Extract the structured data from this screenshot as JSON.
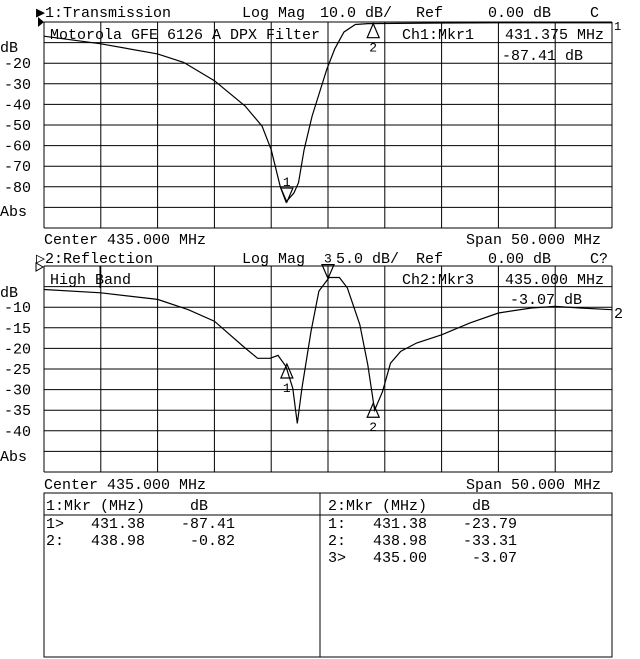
{
  "ch1": {
    "header": {
      "channel": "▶1:Transmission",
      "format": "Log Mag",
      "scale": "10.0 dB/",
      "ref_label": "Ref",
      "ref": "0.00 dB",
      "flag": "C"
    },
    "title": "Motorola GFE 6126 A DPX Filter",
    "marker_label": "Ch1:Mkr1",
    "marker_freq": "431.375 MHz",
    "marker_value": "-87.41 dB",
    "yunit": "dB",
    "ytick_labels": [
      "-20",
      "-30",
      "-40",
      "-50",
      "-60",
      "-70",
      "-80"
    ],
    "yfoot": "Abs",
    "center": "Center 435.000 MHz",
    "span": "Span 50.000 MHz",
    "trace_end_label": "1"
  },
  "ch2": {
    "header": {
      "channel": "▷2:Reflection",
      "format": "Log Mag",
      "scale": "5.0 dB/",
      "ref_label": "Ref",
      "ref": "0.00 dB",
      "flag": "C?"
    },
    "title": "High Band",
    "marker_label": "Ch2:Mkr3",
    "marker_freq": "435.000 MHz",
    "marker_value": "-3.07 dB",
    "yunit": "dB",
    "ytick_labels": [
      "-10",
      "-15",
      "-20",
      "-25",
      "-30",
      "-35",
      "-40"
    ],
    "yfoot": "Abs",
    "center": "Center 435.000 MHz",
    "span": "Span 50.000 MHz",
    "trace_end_label": "2"
  },
  "marker_table": {
    "ch1": {
      "header": "1:Mkr (MHz)     dB",
      "rows": [
        "1>   431.38    -87.41",
        "2:   438.98     -0.82"
      ]
    },
    "ch2": {
      "header": "2:Mkr (MHz)     dB",
      "rows": [
        "1:   431.38    -23.79",
        "2:   438.98    -33.31",
        "3>   435.00     -3.07"
      ]
    }
  },
  "chart_data": [
    {
      "type": "line",
      "title": "1:Transmission",
      "xlabel": "",
      "ylabel": "dB",
      "xlim": [
        410,
        460
      ],
      "ylim": [
        -100,
        0
      ],
      "grid": true,
      "x": [
        410,
        415,
        420,
        422.3,
        425,
        427.7,
        429.2,
        430,
        430.8,
        431.3,
        432,
        432.4,
        432.9,
        433.6,
        434.9,
        435.6,
        436.4,
        437.4,
        438.5,
        445,
        450,
        455,
        460
      ],
      "y": [
        -6.9,
        -10.6,
        -15.5,
        -19.6,
        -28.5,
        -40.8,
        -50.6,
        -62,
        -80,
        -87.4,
        -83,
        -78,
        -62,
        -45.7,
        -22.8,
        -13,
        -4.9,
        -1.2,
        -0.8,
        -0.5,
        -0.4,
        -0.4,
        -0.4
      ],
      "markers": [
        {
          "id": "1",
          "freq": 431.38,
          "db": -87.41,
          "dir": "down"
        },
        {
          "id": "2",
          "freq": 438.98,
          "db": -0.82,
          "dir": "up"
        }
      ]
    },
    {
      "type": "line",
      "title": "2:Reflection",
      "xlabel": "",
      "ylabel": "dB",
      "xlim": [
        410,
        460
      ],
      "ylim": [
        -50,
        0
      ],
      "grid": true,
      "x": [
        410,
        415,
        420,
        422.7,
        425,
        427.7,
        428.8,
        429.9,
        430.6,
        431.3,
        431.9,
        432.3,
        432.7,
        433.5,
        434.2,
        435.1,
        436,
        436.7,
        437.8,
        438.5,
        439.1,
        439.8,
        440.5,
        441.4,
        442.8,
        445,
        447.5,
        450,
        452.9,
        455,
        457.2,
        460
      ],
      "y": [
        -5.7,
        -6.5,
        -8.1,
        -10.6,
        -13.4,
        -19.9,
        -22.4,
        -22.4,
        -21.7,
        -24.4,
        -29.7,
        -38.2,
        -29.7,
        -15.9,
        -6.1,
        -2.8,
        -2.8,
        -5.3,
        -14.2,
        -24,
        -35,
        -30.5,
        -23.6,
        -20.7,
        -18.7,
        -16.7,
        -13.8,
        -11.4,
        -10.2,
        -9.8,
        -10.2,
        -10.6
      ],
      "markers": [
        {
          "id": "1",
          "freq": 431.38,
          "db": -23.79,
          "dir": "up"
        },
        {
          "id": "2",
          "freq": 438.98,
          "db": -33.31,
          "dir": "up"
        },
        {
          "id": "3",
          "freq": 435.0,
          "db": -3.07,
          "dir": "down"
        }
      ]
    }
  ]
}
